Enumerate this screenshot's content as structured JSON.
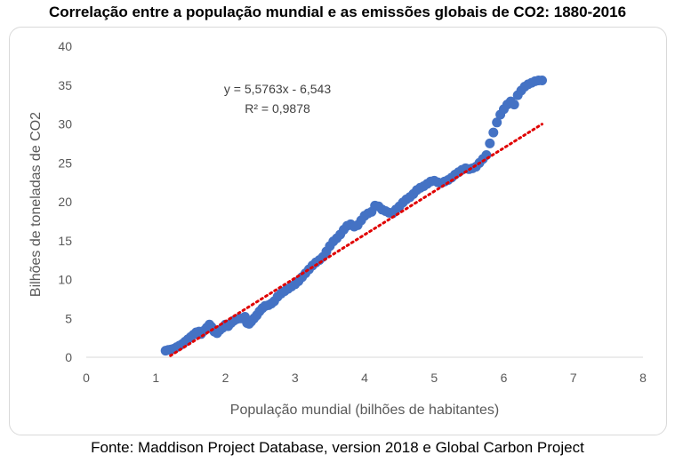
{
  "title": "Correlação entre a população mundial e as emissões globais de CO2: 1880-2016",
  "source": "Fonte: Maddison Project Database, version 2018 e Global Carbon Project",
  "colors": {
    "points": "#4472c4",
    "trendline": "#e00000",
    "axis": "#d9d9d9",
    "text": "#595959"
  },
  "chart_data": {
    "type": "scatter",
    "xlabel": "População mundial (bilhões de habitantes)",
    "ylabel": "Bilhões de toneladas de CO2",
    "xlim": [
      0,
      8
    ],
    "ylim": [
      0,
      40
    ],
    "xticks": [
      "0",
      "1",
      "2",
      "3",
      "4",
      "5",
      "6",
      "7",
      "8"
    ],
    "yticks": [
      "0",
      "5",
      "10",
      "15",
      "20",
      "25",
      "30",
      "35",
      "40"
    ],
    "grid": false,
    "trendline": {
      "type": "linear",
      "slope": 5.5763,
      "intercept": -6.543,
      "equation": "y = 5,5763x - 6,543",
      "r2": "R² = 0,9878"
    },
    "series": [
      {
        "points": [
          [
            1.14,
            0.85
          ],
          [
            1.18,
            0.95
          ],
          [
            1.22,
            1.0
          ],
          [
            1.26,
            1.1
          ],
          [
            1.3,
            1.3
          ],
          [
            1.34,
            1.5
          ],
          [
            1.38,
            1.7
          ],
          [
            1.42,
            2.0
          ],
          [
            1.46,
            2.3
          ],
          [
            1.5,
            2.6
          ],
          [
            1.54,
            2.9
          ],
          [
            1.58,
            3.2
          ],
          [
            1.62,
            3.3
          ],
          [
            1.65,
            3.0
          ],
          [
            1.69,
            3.4
          ],
          [
            1.73,
            3.8
          ],
          [
            1.77,
            4.2
          ],
          [
            1.8,
            3.9
          ],
          [
            1.84,
            3.3
          ],
          [
            1.88,
            3.1
          ],
          [
            1.92,
            3.5
          ],
          [
            1.96,
            3.8
          ],
          [
            2.0,
            4.2
          ],
          [
            2.04,
            4.0
          ],
          [
            2.08,
            4.4
          ],
          [
            2.12,
            4.7
          ],
          [
            2.16,
            4.9
          ],
          [
            2.2,
            5.0
          ],
          [
            2.24,
            5.0
          ],
          [
            2.28,
            5.2
          ],
          [
            2.31,
            4.4
          ],
          [
            2.34,
            4.3
          ],
          [
            2.37,
            4.6
          ],
          [
            2.41,
            5.0
          ],
          [
            2.45,
            5.4
          ],
          [
            2.49,
            5.9
          ],
          [
            2.53,
            6.3
          ],
          [
            2.57,
            6.6
          ],
          [
            2.62,
            6.7
          ],
          [
            2.66,
            6.9
          ],
          [
            2.7,
            7.2
          ],
          [
            2.75,
            7.8
          ],
          [
            2.8,
            8.2
          ],
          [
            2.85,
            8.5
          ],
          [
            2.9,
            8.8
          ],
          [
            2.95,
            9.1
          ],
          [
            3.0,
            9.4
          ],
          [
            3.05,
            9.8
          ],
          [
            3.1,
            10.3
          ],
          [
            3.15,
            10.8
          ],
          [
            3.2,
            11.3
          ],
          [
            3.25,
            11.8
          ],
          [
            3.3,
            12.2
          ],
          [
            3.35,
            12.5
          ],
          [
            3.4,
            12.9
          ],
          [
            3.45,
            13.6
          ],
          [
            3.5,
            14.3
          ],
          [
            3.55,
            14.9
          ],
          [
            3.6,
            15.3
          ],
          [
            3.65,
            15.8
          ],
          [
            3.7,
            16.4
          ],
          [
            3.75,
            16.9
          ],
          [
            3.8,
            17.1
          ],
          [
            3.85,
            16.8
          ],
          [
            3.9,
            17.0
          ],
          [
            3.95,
            17.6
          ],
          [
            4.0,
            18.2
          ],
          [
            4.05,
            18.5
          ],
          [
            4.1,
            18.7
          ],
          [
            4.15,
            19.5
          ],
          [
            4.2,
            19.4
          ],
          [
            4.25,
            19.0
          ],
          [
            4.3,
            18.8
          ],
          [
            4.35,
            18.6
          ],
          [
            4.4,
            18.5
          ],
          [
            4.45,
            19.0
          ],
          [
            4.5,
            19.4
          ],
          [
            4.55,
            19.9
          ],
          [
            4.6,
            20.3
          ],
          [
            4.65,
            20.6
          ],
          [
            4.7,
            21.0
          ],
          [
            4.75,
            21.5
          ],
          [
            4.8,
            21.8
          ],
          [
            4.85,
            22.0
          ],
          [
            4.9,
            22.3
          ],
          [
            4.95,
            22.6
          ],
          [
            5.0,
            22.7
          ],
          [
            5.05,
            22.5
          ],
          [
            5.1,
            22.4
          ],
          [
            5.15,
            22.6
          ],
          [
            5.2,
            22.8
          ],
          [
            5.25,
            23.1
          ],
          [
            5.3,
            23.5
          ],
          [
            5.35,
            23.8
          ],
          [
            5.4,
            24.1
          ],
          [
            5.45,
            24.3
          ],
          [
            5.5,
            24.2
          ],
          [
            5.55,
            24.3
          ],
          [
            5.6,
            24.5
          ],
          [
            5.65,
            25.0
          ],
          [
            5.7,
            25.5
          ],
          [
            5.75,
            26.0
          ],
          [
            5.8,
            27.5
          ],
          [
            5.85,
            28.9
          ],
          [
            5.9,
            30.2
          ],
          [
            5.95,
            31.2
          ],
          [
            6.0,
            31.9
          ],
          [
            6.05,
            32.5
          ],
          [
            6.1,
            32.9
          ],
          [
            6.15,
            32.5
          ],
          [
            6.2,
            33.7
          ],
          [
            6.25,
            34.3
          ],
          [
            6.3,
            34.8
          ],
          [
            6.35,
            35.1
          ],
          [
            6.4,
            35.3
          ],
          [
            6.45,
            35.5
          ],
          [
            6.5,
            35.6
          ],
          [
            6.55,
            35.6
          ]
        ]
      }
    ]
  }
}
